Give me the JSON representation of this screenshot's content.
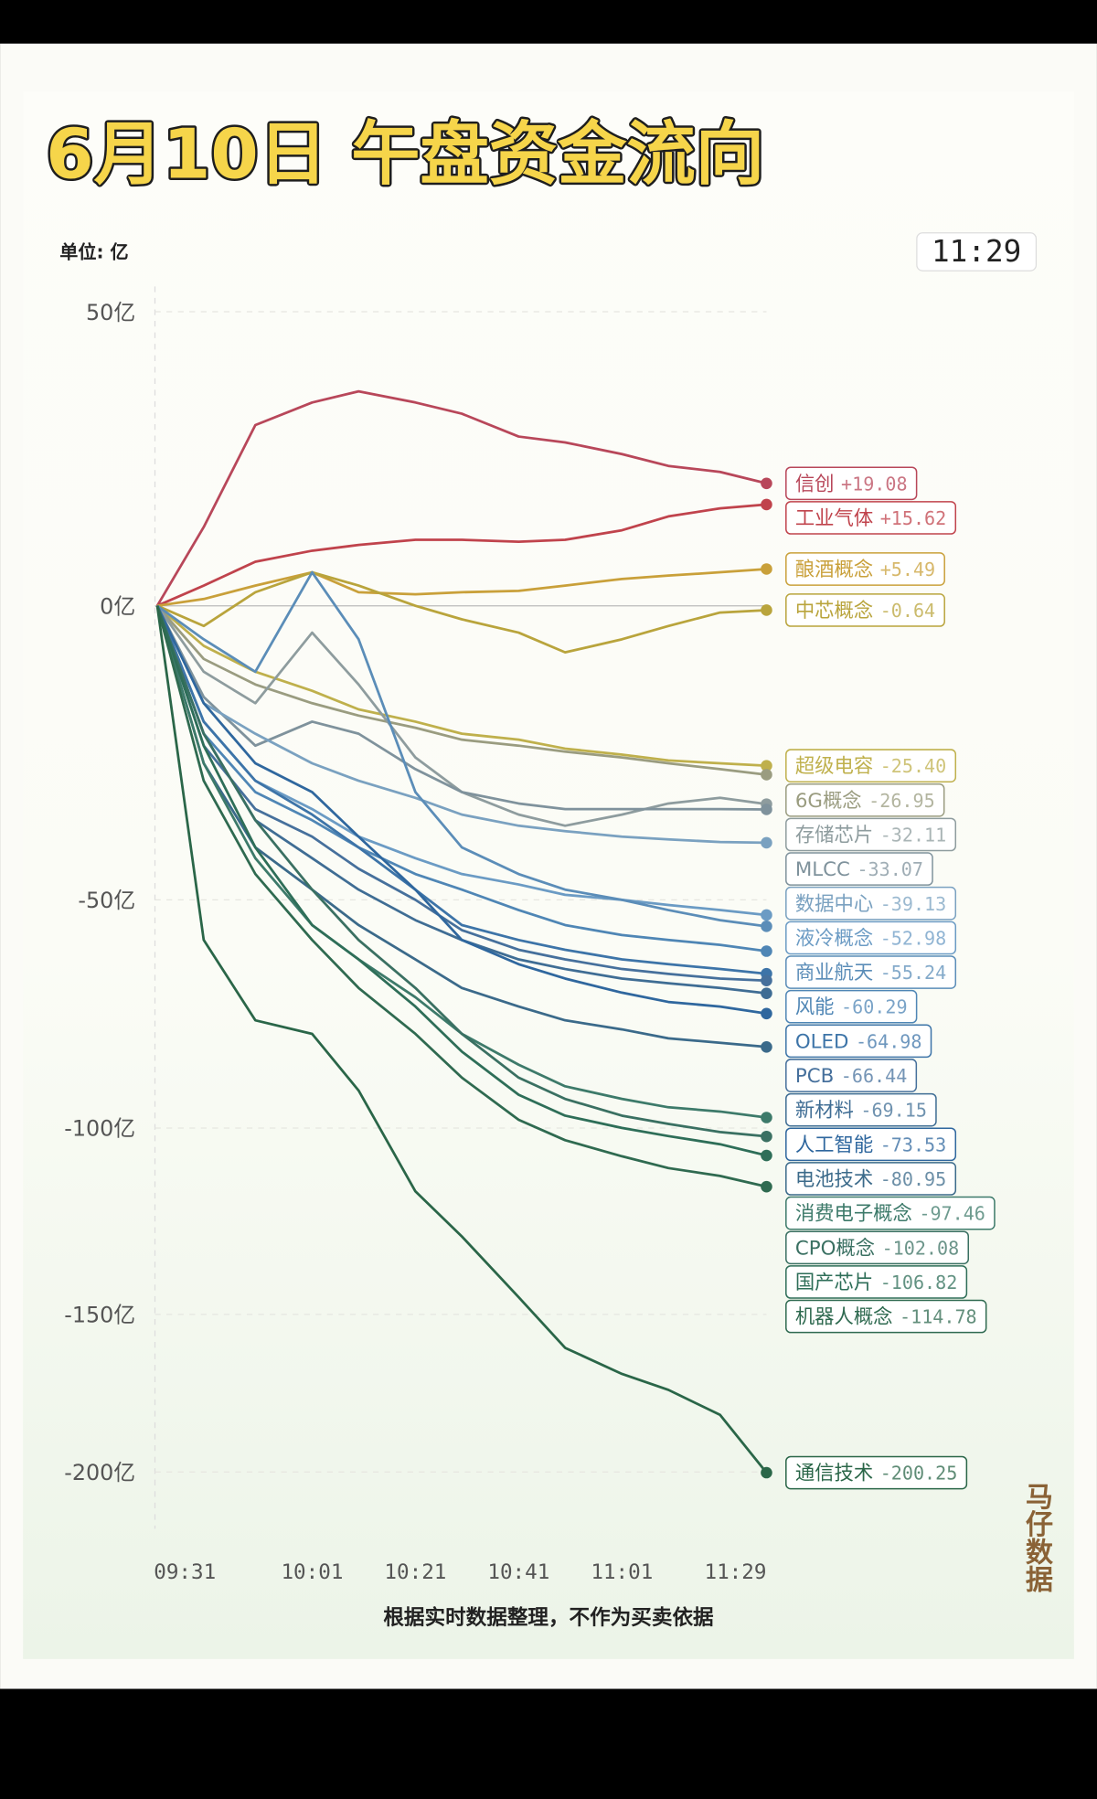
{
  "chart_data": {
    "type": "line",
    "title": "6月10日 午盘资金流向",
    "unit_label": "单位: 亿",
    "clock": "11:29",
    "footnote": "根据实时数据整理，不作为买卖依据",
    "watermark": "马仔数据",
    "yscale": "symlog",
    "grid": true,
    "x": [
      "09:31",
      "09:40",
      "09:50",
      "10:01",
      "10:10",
      "10:21",
      "10:30",
      "10:41",
      "10:50",
      "11:01",
      "11:10",
      "11:20",
      "11:29"
    ],
    "xlim": [
      "09:31",
      "11:29"
    ],
    "xticks": [
      "09:31",
      "10:01",
      "10:21",
      "10:41",
      "11:01",
      "11:29"
    ],
    "ylim": [
      -220,
      55
    ],
    "yticks": [
      {
        "value": 50,
        "label": "50亿"
      },
      {
        "value": 0,
        "label": "0亿"
      },
      {
        "value": -50,
        "label": "-50亿"
      },
      {
        "value": -100,
        "label": "-100亿"
      },
      {
        "value": -150,
        "label": "-150亿"
      },
      {
        "value": -200,
        "label": "-200亿"
      }
    ],
    "series": [
      {
        "name": "信创",
        "color": "#b8475a",
        "values": [
          0,
          12,
          29,
          33,
          35,
          33,
          31,
          27,
          26,
          24,
          22,
          21,
          19.08
        ],
        "value_labels": [
          null,
          null,
          null,
          null,
          null,
          null,
          null,
          null,
          null,
          null,
          null,
          null,
          "+19.08"
        ]
      },
      {
        "name": "工业气体",
        "color": "#c0434c",
        "values": [
          0,
          3,
          6.6,
          8.3,
          9.2,
          10,
          10,
          9.7,
          10,
          11.5,
          13.7,
          15,
          15.62
        ],
        "value_labels": [
          null,
          null,
          null,
          null,
          null,
          null,
          null,
          null,
          null,
          null,
          null,
          null,
          "+15.62"
        ]
      },
      {
        "name": "酿酒概念",
        "color": "#c9a03a",
        "values": [
          0,
          1,
          3,
          5,
          2,
          1.7,
          2,
          2.2,
          3,
          4,
          4.5,
          5,
          5.49
        ],
        "value_labels": [
          null,
          null,
          null,
          null,
          null,
          null,
          null,
          null,
          null,
          null,
          null,
          null,
          "+5.49"
        ]
      },
      {
        "name": "中芯概念",
        "color": "#b9a43c",
        "values": [
          0,
          -3,
          2,
          5,
          3,
          0,
          -2,
          -4,
          -7,
          -5,
          -3,
          -1,
          -0.64
        ],
        "value_labels": [
          null,
          null,
          null,
          null,
          null,
          null,
          null,
          null,
          null,
          null,
          null,
          null,
          "-0.64"
        ]
      },
      {
        "name": "超级电容",
        "color": "#bfb04c",
        "values": [
          0,
          -6,
          -10,
          -13,
          -16,
          -18,
          -20,
          -21,
          -22.5,
          -23.5,
          -24.5,
          -25,
          -25.4
        ],
        "value_labels": [
          null,
          null,
          null,
          null,
          null,
          null,
          null,
          null,
          null,
          null,
          null,
          null,
          "-25.40"
        ]
      },
      {
        "name": "6G概念",
        "color": "#9a9c80",
        "values": [
          0,
          -8,
          -12,
          -15,
          -17,
          -19,
          -21,
          -22,
          -23,
          -24,
          -25,
          -26,
          -26.95
        ],
        "value_labels": [
          null,
          null,
          null,
          null,
          null,
          null,
          null,
          null,
          null,
          null,
          null,
          null,
          "-26.95"
        ]
      },
      {
        "name": "存储芯片",
        "color": "#8e9c9e",
        "values": [
          0,
          -10,
          -15,
          -4,
          -12,
          -24,
          -30,
          -34,
          -36,
          -34,
          -32,
          -31,
          -32.11
        ],
        "value_labels": [
          null,
          null,
          null,
          null,
          null,
          null,
          null,
          null,
          null,
          null,
          null,
          null,
          "-32.11"
        ]
      },
      {
        "name": "MLCC",
        "color": "#7f929c",
        "values": [
          0,
          -14,
          -22,
          -18,
          -20,
          -26,
          -30,
          -32,
          -33,
          -33,
          -33,
          -33,
          -33.07
        ],
        "value_labels": [
          null,
          null,
          null,
          null,
          null,
          null,
          null,
          null,
          null,
          null,
          null,
          null,
          "-33.07"
        ]
      },
      {
        "name": "数据中心",
        "color": "#7aa1c0",
        "values": [
          0,
          -15,
          -20,
          -25,
          -28,
          -31,
          -34,
          -36,
          -37,
          -38,
          -38.5,
          -39,
          -39.13
        ],
        "value_labels": [
          null,
          null,
          null,
          null,
          null,
          null,
          null,
          null,
          null,
          null,
          null,
          null,
          "-39.13"
        ]
      },
      {
        "name": "液冷概念",
        "color": "#6b9bc4",
        "values": [
          0,
          -18,
          -28,
          -33,
          -38,
          -42,
          -45,
          -47,
          -49,
          -50,
          -51,
          -52,
          -52.98
        ],
        "value_labels": [
          null,
          null,
          null,
          null,
          null,
          null,
          null,
          null,
          null,
          null,
          null,
          null,
          "-52.98"
        ]
      },
      {
        "name": "商业航天",
        "color": "#5b8db8",
        "values": [
          0,
          -5,
          -10,
          5,
          -5,
          -30,
          -40,
          -45,
          -48,
          -50,
          -52,
          -54,
          -55.24
        ],
        "value_labels": [
          null,
          null,
          null,
          null,
          null,
          null,
          null,
          null,
          null,
          null,
          null,
          null,
          "-55.24"
        ]
      },
      {
        "name": "风能",
        "color": "#4f86b5",
        "values": [
          0,
          -20,
          -30,
          -35,
          -40,
          -45,
          -48,
          -52,
          -55,
          -57,
          -58,
          -59,
          -60.29
        ],
        "value_labels": [
          null,
          null,
          null,
          null,
          null,
          null,
          null,
          null,
          null,
          null,
          null,
          null,
          "-60.29"
        ]
      },
      {
        "name": "OLED",
        "color": "#3d74a8",
        "values": [
          0,
          -18,
          -28,
          -34,
          -40,
          -48,
          -55,
          -58,
          -60,
          -62,
          -63,
          -64,
          -64.98
        ],
        "value_labels": [
          null,
          null,
          null,
          null,
          null,
          null,
          null,
          null,
          null,
          null,
          null,
          null,
          "-64.98"
        ]
      },
      {
        "name": "PCB",
        "color": "#46709c",
        "values": [
          0,
          -22,
          -33,
          -38,
          -44,
          -50,
          -56,
          -60,
          -62,
          -64,
          -65,
          -66,
          -66.44
        ],
        "value_labels": [
          null,
          null,
          null,
          null,
          null,
          null,
          null,
          null,
          null,
          null,
          null,
          null,
          "-66.44"
        ]
      },
      {
        "name": "新材料",
        "color": "#3f6d94",
        "values": [
          0,
          -20,
          -35,
          -42,
          -48,
          -54,
          -58,
          -62,
          -64,
          -66,
          -67,
          -68,
          -69.15
        ],
        "value_labels": [
          null,
          null,
          null,
          null,
          null,
          null,
          null,
          null,
          null,
          null,
          null,
          null,
          "-69.15"
        ]
      },
      {
        "name": "人工智能",
        "color": "#2f679e",
        "values": [
          0,
          -15,
          -25,
          -30,
          -38,
          -48,
          -58,
          -63,
          -66,
          -69,
          -71,
          -72,
          -73.53
        ],
        "value_labels": [
          null,
          null,
          null,
          null,
          null,
          null,
          null,
          null,
          null,
          null,
          null,
          null,
          "-73.53"
        ]
      },
      {
        "name": "电池技术",
        "color": "#3b6a8a",
        "values": [
          0,
          -25,
          -40,
          -48,
          -55,
          -62,
          -68,
          -72,
          -75,
          -77,
          -79,
          -80,
          -80.95
        ],
        "value_labels": [
          null,
          null,
          null,
          null,
          null,
          null,
          null,
          null,
          null,
          null,
          null,
          null,
          "-80.95"
        ]
      },
      {
        "name": "消费电子概念",
        "color": "#3d7a6a",
        "values": [
          0,
          -25,
          -42,
          -55,
          -62,
          -70,
          -78,
          -85,
          -90,
          -93,
          -95,
          -96,
          -97.46
        ],
        "value_labels": [
          null,
          null,
          null,
          null,
          null,
          null,
          null,
          null,
          null,
          null,
          null,
          null,
          "-97.46"
        ]
      },
      {
        "name": "CPO概念",
        "color": "#3a7062",
        "values": [
          0,
          -20,
          -35,
          -48,
          -58,
          -68,
          -78,
          -88,
          -93,
          -97,
          -99,
          -101,
          -102.08
        ],
        "value_labels": [
          null,
          null,
          null,
          null,
          null,
          null,
          null,
          null,
          null,
          null,
          null,
          null,
          "-102.08"
        ]
      },
      {
        "name": "国产芯片",
        "color": "#2e6e58",
        "values": [
          0,
          -22,
          -40,
          -55,
          -62,
          -72,
          -82,
          -92,
          -97,
          -100,
          -102,
          -104,
          -106.82
        ],
        "value_labels": [
          null,
          null,
          null,
          null,
          null,
          null,
          null,
          null,
          null,
          null,
          null,
          null,
          "-106.82"
        ]
      },
      {
        "name": "机器人概念",
        "color": "#2f6a50",
        "values": [
          0,
          -28,
          -45,
          -58,
          -68,
          -78,
          -88,
          -98,
          -103,
          -107,
          -110,
          -112,
          -114.78
        ],
        "value_labels": [
          null,
          null,
          null,
          null,
          null,
          null,
          null,
          null,
          null,
          null,
          null,
          null,
          "-114.78"
        ]
      },
      {
        "name": "通信技术",
        "color": "#2a6648",
        "values": [
          0,
          -58,
          -75,
          -78,
          -91,
          -116,
          -128,
          -145,
          -160,
          -168,
          -173,
          -181,
          -200.25
        ],
        "value_labels": [
          null,
          null,
          null,
          null,
          null,
          null,
          null,
          null,
          null,
          null,
          null,
          null,
          "-200.25"
        ]
      }
    ]
  }
}
